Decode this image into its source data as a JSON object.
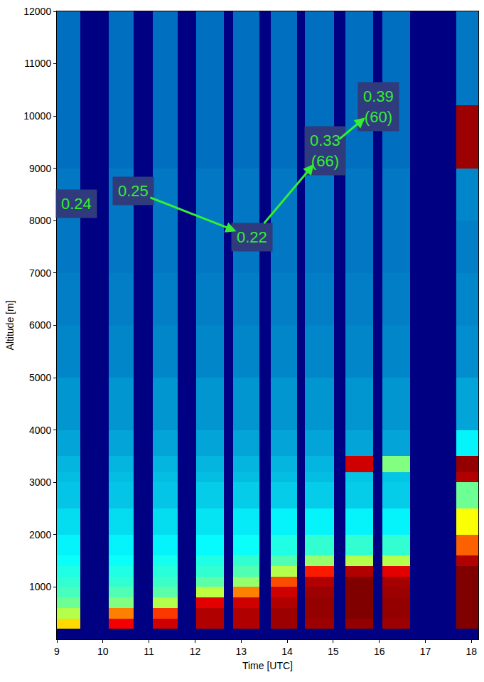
{
  "chart_data": {
    "type": "heatmap",
    "xlabel": "Time [UTC]",
    "ylabel": "Altitude [m]",
    "xlim": [
      9,
      18.15
    ],
    "xticks": [
      9,
      10,
      11,
      12,
      13,
      14,
      15,
      16,
      17,
      18
    ],
    "ylim": [
      0,
      12000
    ],
    "yticks": [
      1000,
      2000,
      3000,
      4000,
      5000,
      6000,
      7000,
      8000,
      9000,
      10000,
      11000,
      12000
    ],
    "grid": false,
    "zlim": [
      0,
      1
    ],
    "x_edges": [
      9.0,
      9.51,
      10.12,
      10.66,
      11.08,
      11.63,
      12.02,
      12.62,
      12.82,
      13.39,
      13.64,
      14.21,
      14.39,
      15.02,
      15.26,
      15.87,
      16.06,
      16.67,
      17.67,
      18.15
    ],
    "y_edges": [
      0,
      200,
      400,
      600,
      800,
      1000,
      1200,
      1400,
      1600,
      2000,
      2500,
      3000,
      3200,
      3500,
      4000,
      5000,
      6000,
      7000,
      8000,
      9000,
      10200,
      12000
    ],
    "z_columns": [
      [
        0,
        0.66,
        0.55,
        0.48,
        0.44,
        0.42,
        0.4,
        0.38,
        0.36,
        0.33,
        0.3,
        0.29,
        0.28,
        0.26,
        0.24,
        0.22,
        0.21,
        0.2,
        0.2,
        0.19,
        0.19
      ],
      null,
      [
        0,
        0.88,
        0.75,
        0.5,
        0.45,
        0.42,
        0.4,
        0.38,
        0.36,
        0.33,
        0.3,
        0.29,
        0.28,
        0.26,
        0.24,
        0.22,
        0.21,
        0.2,
        0.2,
        0.19,
        0.19
      ],
      null,
      [
        0,
        0.92,
        0.82,
        0.55,
        0.46,
        0.43,
        0.41,
        0.39,
        0.36,
        0.33,
        0.3,
        0.29,
        0.28,
        0.26,
        0.24,
        0.22,
        0.21,
        0.2,
        0.2,
        0.19,
        0.19
      ],
      null,
      [
        0,
        0.95,
        0.95,
        0.9,
        0.56,
        0.46,
        0.42,
        0.4,
        0.37,
        0.34,
        0.31,
        0.29,
        0.28,
        0.26,
        0.24,
        0.22,
        0.21,
        0.2,
        0.2,
        0.19,
        0.19
      ],
      null,
      [
        0,
        0.95,
        0.95,
        0.92,
        0.75,
        0.52,
        0.45,
        0.42,
        0.38,
        0.35,
        0.31,
        0.29,
        0.28,
        0.26,
        0.24,
        0.22,
        0.21,
        0.2,
        0.2,
        0.19,
        0.19
      ],
      null,
      [
        0,
        0.97,
        0.97,
        0.95,
        0.92,
        0.8,
        0.55,
        0.45,
        0.4,
        0.36,
        0.31,
        0.29,
        0.28,
        0.26,
        0.24,
        0.22,
        0.21,
        0.2,
        0.2,
        0.19,
        0.19
      ],
      null,
      [
        0,
        0.97,
        0.98,
        0.98,
        0.97,
        0.95,
        0.85,
        0.52,
        0.42,
        0.36,
        0.31,
        0.29,
        0.28,
        0.26,
        0.24,
        0.22,
        0.21,
        0.2,
        0.2,
        0.19,
        0.19
      ],
      null,
      [
        0,
        0.98,
        1,
        1,
        1,
        1,
        0.95,
        0.55,
        0.42,
        0.36,
        0.31,
        0.3,
        0.92,
        0.26,
        0.24,
        0.22,
        0.21,
        0.2,
        0.2,
        0.19,
        0.19
      ],
      null,
      [
        0,
        0.97,
        0.98,
        0.98,
        0.97,
        0.96,
        0.9,
        0.55,
        0.42,
        0.36,
        0.31,
        0.3,
        0.5,
        0.26,
        0.24,
        0.22,
        0.21,
        0.2,
        0.2,
        0.19,
        0.19
      ],
      null,
      [
        0,
        1,
        1,
        1,
        1,
        1,
        1,
        0.95,
        0.78,
        0.62,
        0.48,
        0.95,
        0.98,
        0.36,
        0.26,
        0.23,
        0.22,
        0.21,
        0.22,
        0.97,
        0.2
      ]
    ],
    "annotations": [
      {
        "lines": [
          "0.24"
        ],
        "x": 9.43,
        "y": 8330
      },
      {
        "lines": [
          "0.25"
        ],
        "x": 10.66,
        "y": 8570
      },
      {
        "lines": [
          "0.22"
        ],
        "x": 13.24,
        "y": 7680
      },
      {
        "lines": [
          "0.33",
          "(66)"
        ],
        "x": 14.82,
        "y": 9330
      },
      {
        "lines": [
          "0.39",
          "(60)"
        ],
        "x": 15.98,
        "y": 10180
      }
    ]
  }
}
